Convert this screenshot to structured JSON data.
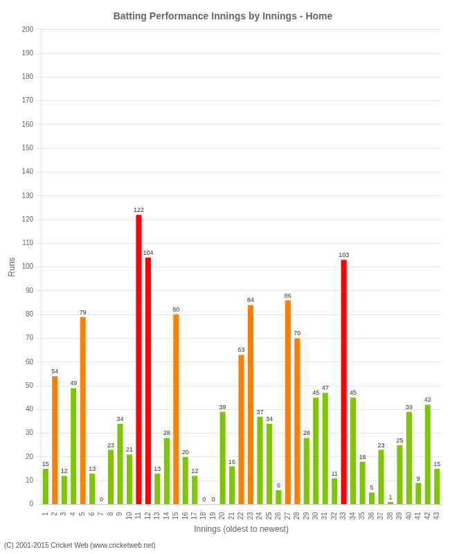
{
  "chart_data": {
    "type": "bar",
    "title": "Batting Performance Innings by Innings - Home",
    "xlabel": "Innings (oldest to newest)",
    "ylabel": "Runs",
    "footer": "(C) 2001-2015 Cricket Web (www.cricketweb.net)",
    "categories": [
      "1",
      "2",
      "3",
      "4",
      "5",
      "6",
      "7",
      "8",
      "9",
      "10",
      "11",
      "12",
      "13",
      "14",
      "15",
      "16",
      "17",
      "18",
      "19",
      "20",
      "21",
      "22",
      "23",
      "24",
      "25",
      "26",
      "27",
      "28",
      "29",
      "30",
      "31",
      "32",
      "33",
      "34",
      "35",
      "36",
      "37",
      "38",
      "39",
      "40",
      "41",
      "42",
      "43"
    ],
    "values": [
      15,
      54,
      12,
      49,
      79,
      13,
      0,
      23,
      34,
      21,
      122,
      104,
      13,
      28,
      80,
      20,
      12,
      0,
      0,
      39,
      16,
      63,
      84,
      37,
      34,
      6,
      86,
      70,
      28,
      45,
      47,
      11,
      103,
      45,
      18,
      5,
      23,
      1,
      25,
      39,
      9,
      42,
      15
    ],
    "colors": [
      "#7dc700",
      "#ff8000",
      "#7dc700",
      "#7dc700",
      "#ff8000",
      "#7dc700",
      "#7dc700",
      "#7dc700",
      "#7dc700",
      "#7dc700",
      "#ff0000",
      "#ff0000",
      "#7dc700",
      "#7dc700",
      "#ff8000",
      "#7dc700",
      "#7dc700",
      "#7dc700",
      "#7dc700",
      "#7dc700",
      "#7dc700",
      "#ff8000",
      "#ff8000",
      "#7dc700",
      "#7dc700",
      "#7dc700",
      "#ff8000",
      "#ff8000",
      "#7dc700",
      "#7dc700",
      "#7dc700",
      "#7dc700",
      "#ff0000",
      "#7dc700",
      "#7dc700",
      "#7dc700",
      "#7dc700",
      "#7dc700",
      "#7dc700",
      "#7dc700",
      "#7dc700",
      "#7dc700",
      "#7dc700"
    ],
    "ylim": [
      0,
      200
    ],
    "yticks": [
      0,
      10,
      20,
      30,
      40,
      50,
      60,
      70,
      80,
      90,
      100,
      110,
      120,
      130,
      140,
      150,
      160,
      170,
      180,
      190,
      200
    ],
    "grid": true,
    "data_labels": true
  }
}
